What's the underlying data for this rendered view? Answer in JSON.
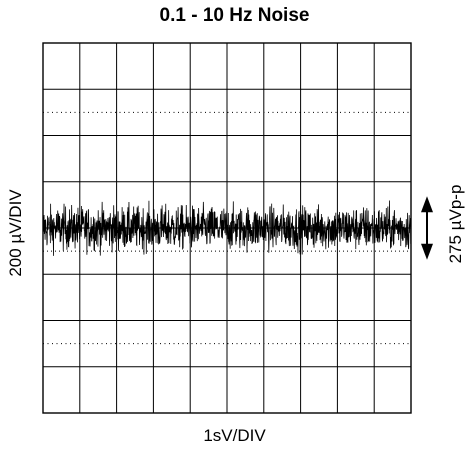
{
  "chart_data": {
    "type": "line",
    "title": "0.1 - 10 Hz Noise",
    "xlabel": "1sV/DIV",
    "ylabel": "200 µV/DIV",
    "annotation": "275 µVp-p",
    "grid": true,
    "x_divisions": 10,
    "y_divisions": 8,
    "xlim": [
      0,
      10
    ],
    "ylim": [
      -800,
      800
    ],
    "x_unit": "s",
    "y_unit": "µV",
    "series": [
      {
        "type": "noise",
        "center": 0,
        "peak_to_peak": 275
      }
    ],
    "colors": {
      "trace": "#000000",
      "grid": "#000000",
      "background": "#ffffff"
    }
  }
}
